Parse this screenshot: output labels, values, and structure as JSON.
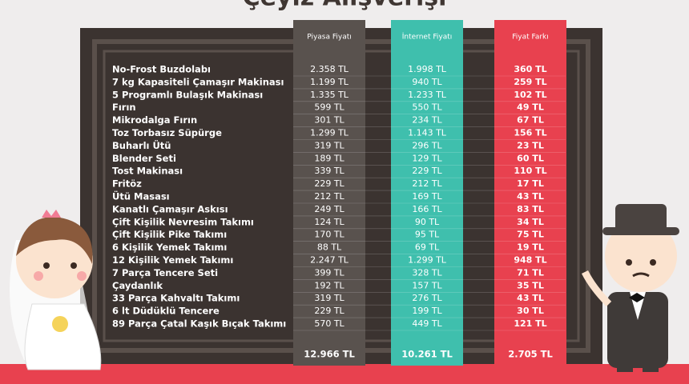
{
  "header": {
    "title": "Çeyiz Alışverişi"
  },
  "table": {
    "columns": [
      "Piyasa Fiyatı",
      "İnternet Fiyatı",
      "Fiyat Farkı"
    ],
    "rows": [
      [
        "No-Frost Buzdolabı",
        "2.358 TL",
        "1.998 TL",
        "360 TL"
      ],
      [
        "7 kg Kapasiteli Çamaşır Makinası",
        "1.199 TL",
        "940 TL",
        "259 TL"
      ],
      [
        "5 Programlı Bulaşık Makinası",
        "1.335 TL",
        "1.233 TL",
        "102 TL"
      ],
      [
        "Fırın",
        "599 TL",
        "550 TL",
        "49 TL"
      ],
      [
        "Mikrodalga Fırın",
        "301 TL",
        "234 TL",
        "67 TL"
      ],
      [
        "Toz Torbasız Süpürge",
        "1.299 TL",
        "1.143 TL",
        "156 TL"
      ],
      [
        "Buharlı Ütü",
        "319 TL",
        "296 TL",
        "23 TL"
      ],
      [
        "Blender Seti",
        "189 TL",
        "129 TL",
        "60 TL"
      ],
      [
        "Tost Makinası",
        "339 TL",
        "229 TL",
        "110 TL"
      ],
      [
        "Fritöz",
        "229 TL",
        "212 TL",
        "17 TL"
      ],
      [
        "Ütü Masası",
        "212 TL",
        "169 TL",
        "43 TL"
      ],
      [
        "Kanatlı Çamaşır Askısı",
        "249 TL",
        "166 TL",
        "83 TL"
      ],
      [
        "Çift Kişilik Nevresim Takımı",
        "124 TL",
        "90 TL",
        "34 TL"
      ],
      [
        "Çift Kişilik Pike Takımı",
        "170 TL",
        "95 TL",
        "75 TL"
      ],
      [
        "6 Kişilik Yemek Takımı",
        "88 TL",
        "69 TL",
        "19 TL"
      ],
      [
        "12 Kişilik Yemek Takımı",
        "2.247 TL",
        "1.299 TL",
        "948 TL"
      ],
      [
        "7 Parça Tencere Seti",
        "399 TL",
        "328 TL",
        "71 TL"
      ],
      [
        "Çaydanlık",
        "192 TL",
        "157 TL",
        "35 TL"
      ],
      [
        "33 Parça Kahvaltı Takımı",
        "319 TL",
        "276 TL",
        "43 TL"
      ],
      [
        "6 lt Düdüklü Tencere",
        "229 TL",
        "199 TL",
        "30 TL"
      ],
      [
        "89 Parça Çatal Kaşık Bıçak Takımı",
        "570 TL",
        "449 TL",
        "121 TL"
      ]
    ],
    "totals": [
      "12.966 TL",
      "10.261 TL",
      "2.705 TL"
    ]
  }
}
